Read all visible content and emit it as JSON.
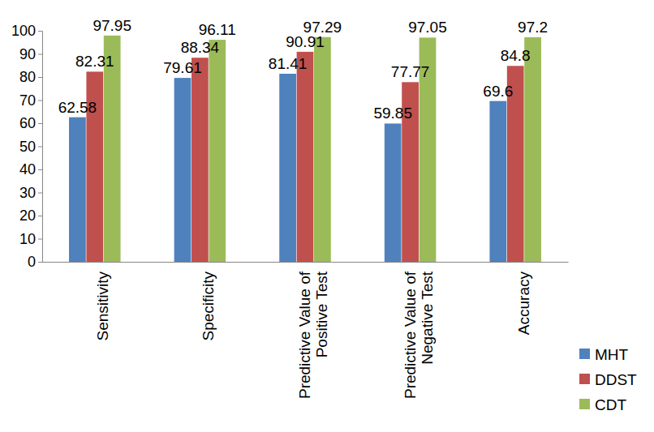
{
  "chart_data": {
    "type": "bar",
    "categories": [
      "Sensitivity",
      "Specificity",
      "Predictive Value of Positive Test",
      "Predictive Value of Negative Test",
      "Accuracy"
    ],
    "series": [
      {
        "name": "MHT",
        "color": "#4f81bd",
        "values": [
          62.58,
          79.61,
          81.41,
          59.85,
          69.6
        ]
      },
      {
        "name": "DDST",
        "color": "#c0504d",
        "values": [
          82.31,
          88.34,
          90.91,
          77.77,
          84.8
        ]
      },
      {
        "name": "CDT",
        "color": "#9bbb59",
        "values": [
          97.95,
          96.11,
          97.29,
          97.05,
          97.2
        ]
      }
    ],
    "ylim": [
      0,
      100
    ],
    "yticks": [
      0,
      10,
      20,
      30,
      40,
      50,
      60,
      70,
      80,
      90,
      100
    ],
    "grid": false,
    "legend": "right",
    "data_labels": true
  }
}
